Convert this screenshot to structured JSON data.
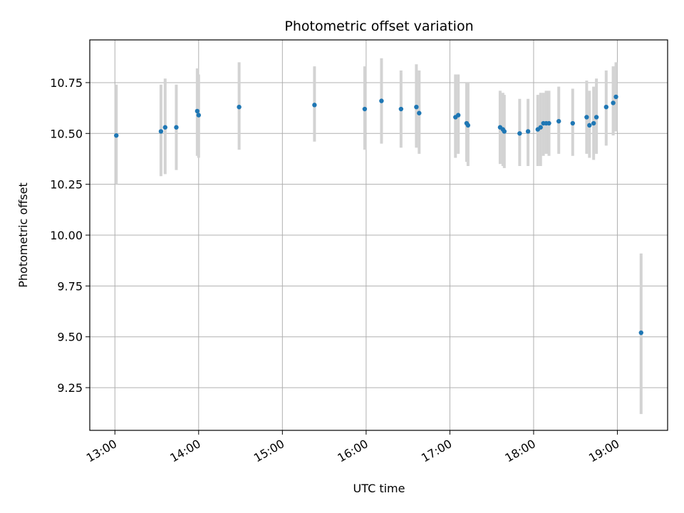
{
  "chart_data": {
    "type": "scatter",
    "title": "Photometric offset variation",
    "xlabel": "UTC time",
    "ylabel": "Photometric offset",
    "x_ticks": [
      "13:00",
      "14:00",
      "15:00",
      "16:00",
      "17:00",
      "18:00",
      "19:00"
    ],
    "y_ticks": [
      "9.25",
      "9.50",
      "9.75",
      "10.00",
      "10.25",
      "10.50",
      "10.75"
    ],
    "xlim": [
      "12:42",
      "19:36"
    ],
    "ylim": [
      9.04,
      10.96
    ],
    "grid": true,
    "point_color": "#1f77b4",
    "errorbar_color": "#d3d3d3",
    "series": [
      {
        "points": [
          {
            "x": "13:01",
            "y": 10.49,
            "err_low": 10.25,
            "err_high": 10.74
          },
          {
            "x": "13:33",
            "y": 10.51,
            "err_low": 10.29,
            "err_high": 10.74
          },
          {
            "x": "13:36",
            "y": 10.53,
            "err_low": 10.3,
            "err_high": 10.77
          },
          {
            "x": "13:44",
            "y": 10.53,
            "err_low": 10.32,
            "err_high": 10.74
          },
          {
            "x": "13:59",
            "y": 10.61,
            "err_low": 10.39,
            "err_high": 10.82
          },
          {
            "x": "14:00",
            "y": 10.59,
            "err_low": 10.38,
            "err_high": 10.79
          },
          {
            "x": "14:29",
            "y": 10.63,
            "err_low": 10.42,
            "err_high": 10.85
          },
          {
            "x": "15:23",
            "y": 10.64,
            "err_low": 10.46,
            "err_high": 10.83
          },
          {
            "x": "15:59",
            "y": 10.62,
            "err_low": 10.42,
            "err_high": 10.83
          },
          {
            "x": "16:11",
            "y": 10.66,
            "err_low": 10.45,
            "err_high": 10.87
          },
          {
            "x": "16:25",
            "y": 10.62,
            "err_low": 10.43,
            "err_high": 10.81
          },
          {
            "x": "16:36",
            "y": 10.63,
            "err_low": 10.43,
            "err_high": 10.84
          },
          {
            "x": "16:38",
            "y": 10.6,
            "err_low": 10.4,
            "err_high": 10.81
          },
          {
            "x": "17:04",
            "y": 10.58,
            "err_low": 10.38,
            "err_high": 10.79
          },
          {
            "x": "17:06",
            "y": 10.59,
            "err_low": 10.4,
            "err_high": 10.79
          },
          {
            "x": "17:12",
            "y": 10.55,
            "err_low": 10.36,
            "err_high": 10.75
          },
          {
            "x": "17:13",
            "y": 10.54,
            "err_low": 10.34,
            "err_high": 10.75
          },
          {
            "x": "17:36",
            "y": 10.53,
            "err_low": 10.35,
            "err_high": 10.71
          },
          {
            "x": "17:38",
            "y": 10.52,
            "err_low": 10.34,
            "err_high": 10.7
          },
          {
            "x": "17:39",
            "y": 10.51,
            "err_low": 10.33,
            "err_high": 10.69
          },
          {
            "x": "17:50",
            "y": 10.5,
            "err_low": 10.34,
            "err_high": 10.67
          },
          {
            "x": "17:56",
            "y": 10.51,
            "err_low": 10.34,
            "err_high": 10.67
          },
          {
            "x": "18:03",
            "y": 10.52,
            "err_low": 10.34,
            "err_high": 10.69
          },
          {
            "x": "18:05",
            "y": 10.53,
            "err_low": 10.34,
            "err_high": 10.7
          },
          {
            "x": "18:07",
            "y": 10.55,
            "err_low": 10.39,
            "err_high": 10.7
          },
          {
            "x": "18:09",
            "y": 10.55,
            "err_low": 10.4,
            "err_high": 10.71
          },
          {
            "x": "18:11",
            "y": 10.55,
            "err_low": 10.39,
            "err_high": 10.71
          },
          {
            "x": "18:18",
            "y": 10.56,
            "err_low": 10.4,
            "err_high": 10.73
          },
          {
            "x": "18:28",
            "y": 10.55,
            "err_low": 10.39,
            "err_high": 10.72
          },
          {
            "x": "18:38",
            "y": 10.58,
            "err_low": 10.4,
            "err_high": 10.76
          },
          {
            "x": "18:40",
            "y": 10.54,
            "err_low": 10.38,
            "err_high": 10.71
          },
          {
            "x": "18:43",
            "y": 10.55,
            "err_low": 10.37,
            "err_high": 10.73
          },
          {
            "x": "18:45",
            "y": 10.58,
            "err_low": 10.4,
            "err_high": 10.77
          },
          {
            "x": "18:52",
            "y": 10.63,
            "err_low": 10.44,
            "err_high": 10.81
          },
          {
            "x": "18:57",
            "y": 10.65,
            "err_low": 10.49,
            "err_high": 10.83
          },
          {
            "x": "18:59",
            "y": 10.68,
            "err_low": 10.51,
            "err_high": 10.85
          },
          {
            "x": "19:17",
            "y": 9.52,
            "err_low": 9.12,
            "err_high": 9.91
          }
        ]
      }
    ]
  }
}
